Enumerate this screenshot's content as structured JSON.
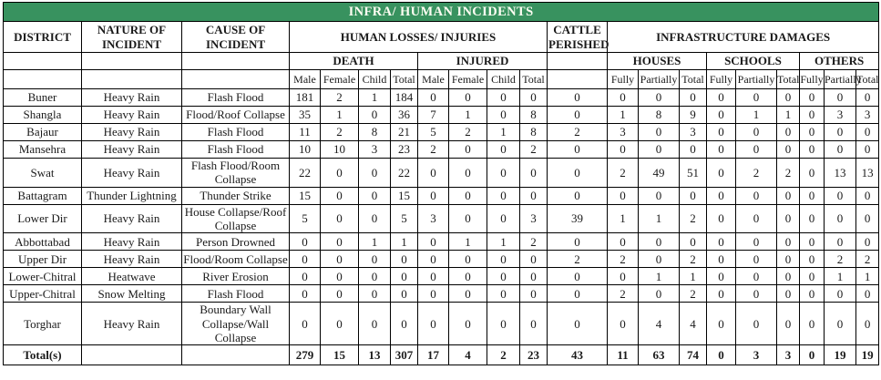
{
  "title": "INFRA/ HUMAN INCIDENTS",
  "colors": {
    "title_bg": "#38925F",
    "title_text": "#FDFDF2",
    "border": "#000000"
  },
  "headers": {
    "district": "DISTRICT",
    "nature": "NATURE OF INCIDENT",
    "cause": "CAUSE OF INCIDENT",
    "human_losses": "HUMAN LOSSES/ INJURIES",
    "cattle": "CATTLE PERISHED",
    "infrastructure": "INFRASTRUCTURE DAMAGES",
    "death": "DEATH",
    "injured": "INJURED",
    "houses": "HOUSES",
    "schools": "SCHOOLS",
    "others": "OTHERS",
    "male": "Male",
    "female": "Female",
    "child": "Child",
    "total": "Total",
    "fully": "Fully",
    "partially": "Partially"
  },
  "rows": [
    {
      "district": "Buner",
      "nature": "Heavy Rain",
      "cause": "Flash Flood",
      "values": [
        181,
        2,
        1,
        184,
        0,
        0,
        0,
        0,
        0,
        0,
        0,
        0,
        0,
        0,
        0,
        0,
        0,
        0
      ]
    },
    {
      "district": "Shangla",
      "nature": "Heavy Rain",
      "cause": "Flood/Roof Collapse",
      "values": [
        35,
        1,
        0,
        36,
        7,
        1,
        0,
        8,
        0,
        1,
        8,
        9,
        0,
        1,
        1,
        0,
        3,
        3
      ]
    },
    {
      "district": "Bajaur",
      "nature": "Heavy Rain",
      "cause": "Flash Flood",
      "values": [
        11,
        2,
        8,
        21,
        5,
        2,
        1,
        8,
        2,
        3,
        0,
        3,
        0,
        0,
        0,
        0,
        0,
        0
      ]
    },
    {
      "district": "Mansehra",
      "nature": "Heavy Rain",
      "cause": "Flash Flood",
      "values": [
        10,
        10,
        3,
        23,
        2,
        0,
        0,
        2,
        0,
        0,
        0,
        0,
        0,
        0,
        0,
        0,
        0,
        0
      ]
    },
    {
      "district": "Swat",
      "nature": "Heavy Rain",
      "cause": "Flash Flood/Room Collapse",
      "values": [
        22,
        0,
        0,
        22,
        0,
        0,
        0,
        0,
        0,
        2,
        49,
        51,
        0,
        2,
        2,
        0,
        13,
        13
      ]
    },
    {
      "district": "Battagram",
      "nature": "Thunder Lightning",
      "cause": "Thunder Strike",
      "values": [
        15,
        0,
        0,
        15,
        0,
        0,
        0,
        0,
        0,
        0,
        0,
        0,
        0,
        0,
        0,
        0,
        0,
        0
      ]
    },
    {
      "district": "Lower Dir",
      "nature": "Heavy Rain",
      "cause": "House Collapse/Roof Collapse",
      "values": [
        5,
        0,
        0,
        5,
        3,
        0,
        0,
        3,
        39,
        1,
        1,
        2,
        0,
        0,
        0,
        0,
        0,
        0
      ]
    },
    {
      "district": "Abbottabad",
      "nature": "Heavy Rain",
      "cause": "Person Drowned",
      "values": [
        0,
        0,
        1,
        1,
        0,
        1,
        1,
        2,
        0,
        0,
        0,
        0,
        0,
        0,
        0,
        0,
        0,
        0
      ]
    },
    {
      "district": "Upper Dir",
      "nature": "Heavy Rain",
      "cause": "Flood/Room Collapse",
      "values": [
        0,
        0,
        0,
        0,
        0,
        0,
        0,
        0,
        2,
        2,
        0,
        2,
        0,
        0,
        0,
        0,
        2,
        2
      ]
    },
    {
      "district": "Lower-Chitral",
      "nature": "Heatwave",
      "cause": "River Erosion",
      "values": [
        0,
        0,
        0,
        0,
        0,
        0,
        0,
        0,
        0,
        0,
        1,
        1,
        0,
        0,
        0,
        0,
        1,
        1
      ]
    },
    {
      "district": "Upper-Chitral",
      "nature": "Snow Melting",
      "cause": "Flash Flood",
      "values": [
        0,
        0,
        0,
        0,
        0,
        0,
        0,
        0,
        0,
        2,
        0,
        2,
        0,
        0,
        0,
        0,
        0,
        0
      ]
    },
    {
      "district": "Torghar",
      "nature": "Heavy Rain",
      "cause": "Boundary Wall Collapse/Wall Collapse",
      "values": [
        0,
        0,
        0,
        0,
        0,
        0,
        0,
        0,
        0,
        0,
        4,
        4,
        0,
        0,
        0,
        0,
        0,
        0
      ]
    }
  ],
  "totals": {
    "label": "Total(s)",
    "values": [
      279,
      15,
      13,
      307,
      17,
      4,
      2,
      23,
      43,
      11,
      63,
      74,
      0,
      3,
      3,
      0,
      19,
      19
    ]
  }
}
